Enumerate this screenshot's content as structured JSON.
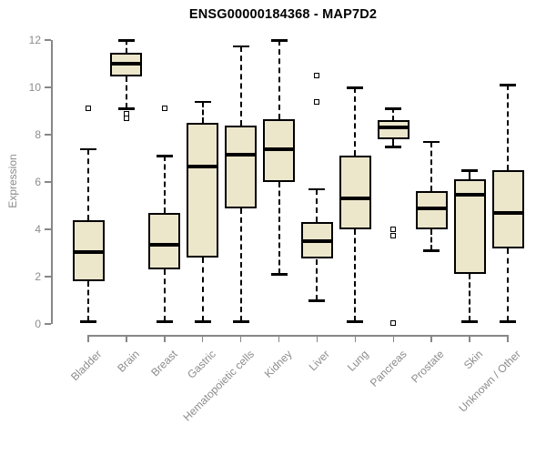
{
  "title": "ENSG00000184368 - MAP7D2",
  "colors": {
    "box_fill": "#ece6cb",
    "box_border": "#000000",
    "median": "#000000",
    "whisker": "#000000",
    "axis": "#878787",
    "axis_text": "#8c8c8c",
    "title_text": "#000000",
    "background": "#ffffff"
  },
  "chart_data": {
    "type": "boxplot",
    "title": "ENSG00000184368 - MAP7D2",
    "xlabel": "",
    "ylabel": "Expression",
    "ylim": [
      0,
      12
    ],
    "yticks": [
      0,
      2,
      4,
      6,
      8,
      10,
      12
    ],
    "grid": false,
    "legend": "none",
    "categories": [
      "Bladder",
      "Brain",
      "Breast",
      "Gastric",
      "Hematopoietic cells",
      "Kidney",
      "Liver",
      "Lung",
      "Pancreas",
      "Prostate",
      "Skin",
      "Unknown / Other"
    ],
    "series": [
      {
        "name": "Bladder",
        "whisker_low": 0.1,
        "q1": 1.8,
        "median": 3.05,
        "q3": 4.4,
        "whisker_high": 7.4,
        "outliers": [
          9.1
        ]
      },
      {
        "name": "Brain",
        "whisker_low": 9.1,
        "q1": 10.45,
        "median": 11.0,
        "q3": 11.45,
        "whisker_high": 12.0,
        "outliers": [
          8.9,
          8.7
        ]
      },
      {
        "name": "Breast",
        "whisker_low": 0.1,
        "q1": 2.3,
        "median": 3.35,
        "q3": 4.7,
        "whisker_high": 7.1,
        "outliers": [
          9.1
        ]
      },
      {
        "name": "Gastric",
        "whisker_low": 0.1,
        "q1": 2.8,
        "median": 6.65,
        "q3": 8.5,
        "whisker_high": 9.4,
        "outliers": []
      },
      {
        "name": "Hematopoietic cells",
        "whisker_low": 0.1,
        "q1": 4.9,
        "median": 7.15,
        "q3": 8.4,
        "whisker_high": 11.75,
        "outliers": []
      },
      {
        "name": "Kidney",
        "whisker_low": 2.1,
        "q1": 6.0,
        "median": 7.4,
        "q3": 8.65,
        "whisker_high": 12.0,
        "outliers": []
      },
      {
        "name": "Liver",
        "whisker_low": 1.0,
        "q1": 2.75,
        "median": 3.5,
        "q3": 4.3,
        "whisker_high": 5.7,
        "outliers": [
          10.5,
          9.4
        ]
      },
      {
        "name": "Lung",
        "whisker_low": 0.1,
        "q1": 4.0,
        "median": 5.3,
        "q3": 7.1,
        "whisker_high": 10.0,
        "outliers": []
      },
      {
        "name": "Pancreas",
        "whisker_low": 7.5,
        "q1": 7.8,
        "median": 8.3,
        "q3": 8.6,
        "whisker_high": 9.1,
        "outliers": [
          4.0,
          3.75,
          0.05
        ]
      },
      {
        "name": "Prostate",
        "whisker_low": 3.1,
        "q1": 4.0,
        "median": 4.9,
        "q3": 5.6,
        "whisker_high": 7.7,
        "outliers": []
      },
      {
        "name": "Skin",
        "whisker_low": 0.1,
        "q1": 2.1,
        "median": 5.45,
        "q3": 6.1,
        "whisker_high": 6.5,
        "outliers": []
      },
      {
        "name": "Unknown / Other",
        "whisker_low": 0.1,
        "q1": 3.2,
        "median": 4.7,
        "q3": 6.5,
        "whisker_high": 10.1,
        "outliers": []
      }
    ]
  }
}
